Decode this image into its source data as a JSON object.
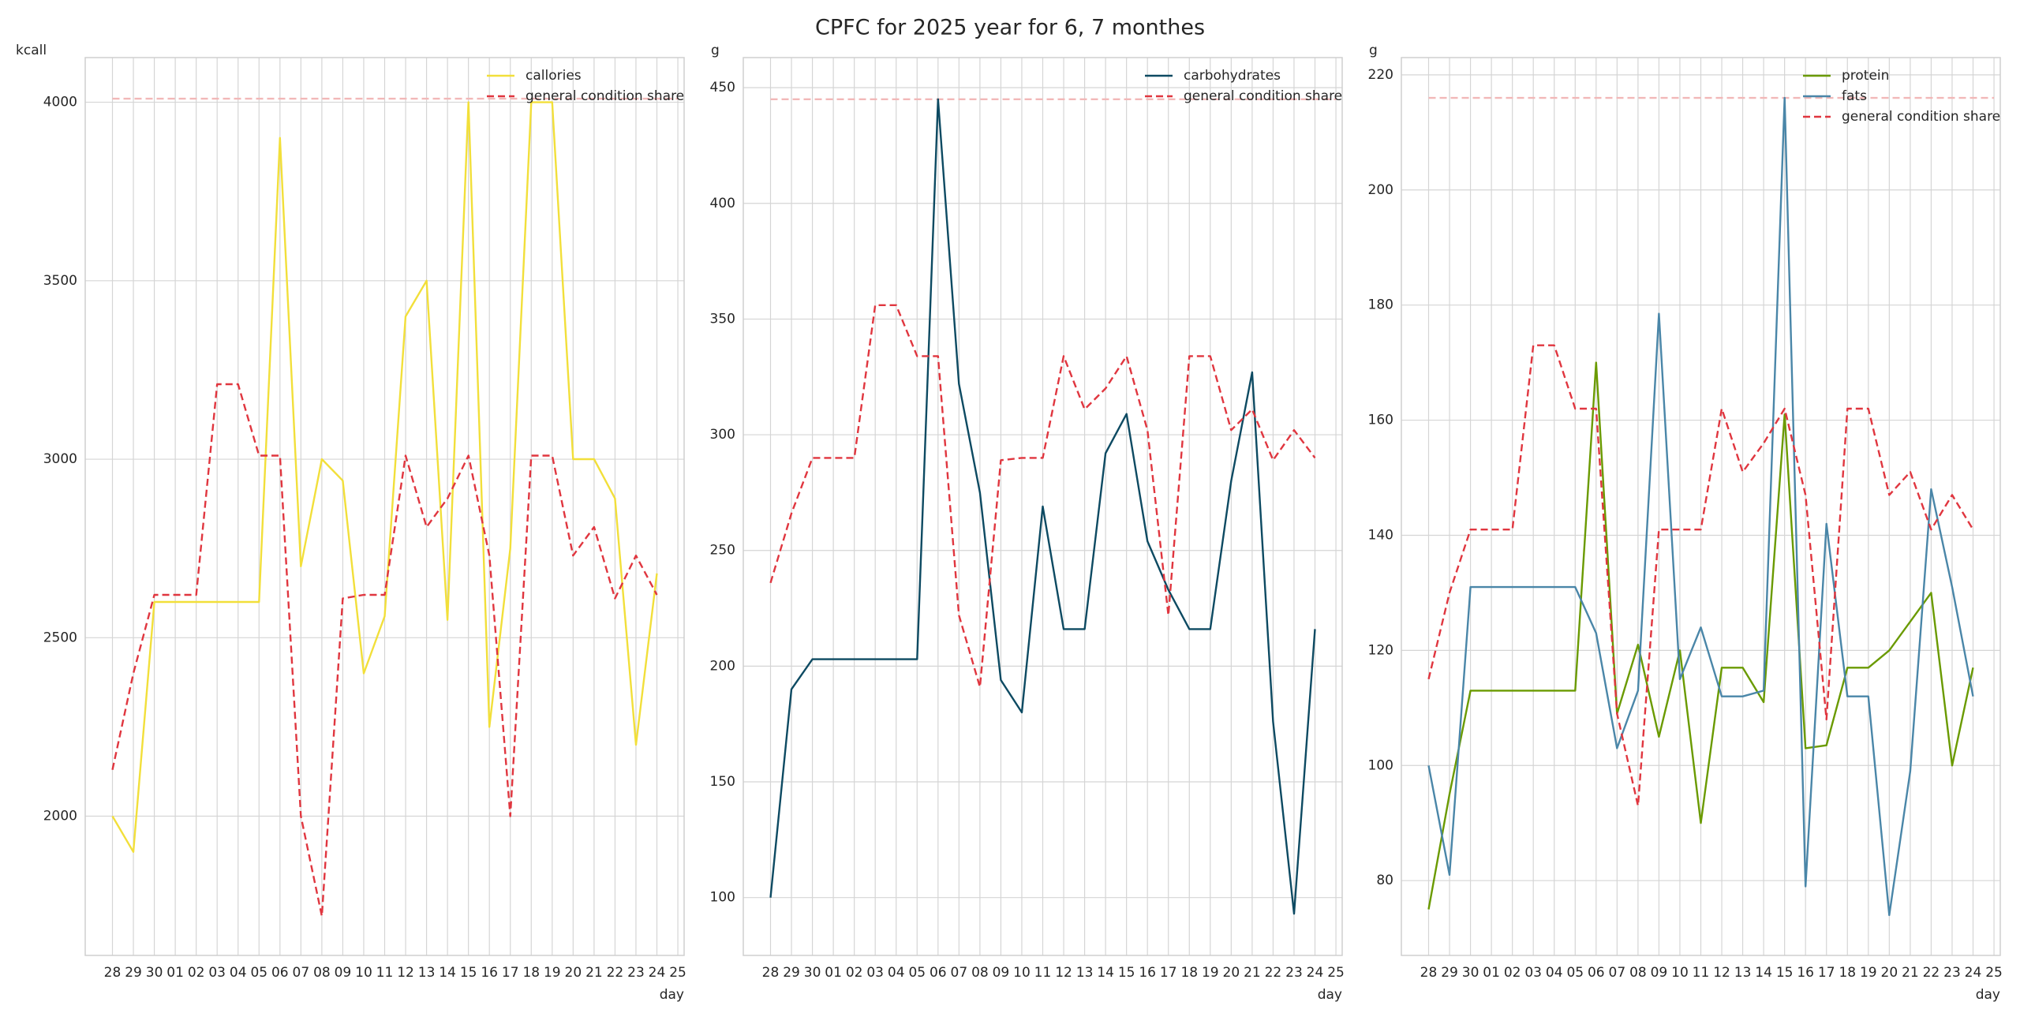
{
  "title": "CPFC for 2025 year for 6, 7 monthes",
  "chart_data": [
    {
      "type": "line",
      "ylabel": "kcall",
      "xlabel": "day",
      "categories": [
        "28",
        "29",
        "30",
        "01",
        "02",
        "03",
        "04",
        "05",
        "06",
        "07",
        "08",
        "09",
        "10",
        "11",
        "12",
        "13",
        "14",
        "15",
        "16",
        "17",
        "18",
        "19",
        "20",
        "21",
        "22",
        "23",
        "24",
        "25"
      ],
      "series": [
        {
          "name": "callories",
          "color": "#f2df3a",
          "linestyle": "solid",
          "values": [
            2000,
            1900,
            2600,
            2600,
            2600,
            2600,
            2600,
            2600,
            3900,
            2700,
            3000,
            2940,
            2400,
            2560,
            3400,
            3500,
            2550,
            4000,
            2250,
            2750,
            4000,
            4000,
            3000,
            3000,
            2890,
            2200,
            2680,
            null
          ]
        },
        {
          "name": "general condition share",
          "color": "#e0363f",
          "linestyle": "dashed",
          "values": [
            2130,
            2400,
            2620,
            2620,
            2620,
            3210,
            3210,
            3010,
            3010,
            2000,
            1720,
            2610,
            2620,
            2620,
            3010,
            2810,
            2890,
            3010,
            2730,
            2000,
            3010,
            3010,
            2730,
            2810,
            2610,
            2730,
            2620,
            null
          ]
        }
      ],
      "reference_line": {
        "value": 4010,
        "color": "#f2b8b8"
      },
      "xlim": [
        -1.3,
        27.3
      ],
      "ylim": [
        1610,
        4125
      ],
      "yticks": [
        2000,
        2500,
        3000,
        3500,
        4000
      ],
      "grid": true,
      "legend": "upper right"
    },
    {
      "type": "line",
      "ylabel": "g",
      "xlabel": "day",
      "categories": [
        "28",
        "29",
        "30",
        "01",
        "02",
        "03",
        "04",
        "05",
        "06",
        "07",
        "08",
        "09",
        "10",
        "11",
        "12",
        "13",
        "14",
        "15",
        "16",
        "17",
        "18",
        "19",
        "20",
        "21",
        "22",
        "23",
        "24",
        "25"
      ],
      "series": [
        {
          "name": "carbohydrates",
          "color": "#0d4a62",
          "linestyle": "solid",
          "values": [
            100,
            190,
            203,
            203,
            203,
            203,
            203,
            203,
            445,
            322,
            275,
            194,
            180,
            269,
            216,
            216,
            292,
            309,
            254,
            233,
            216,
            216,
            280,
            327,
            176,
            93,
            216,
            null
          ]
        },
        {
          "name": "general condition share",
          "color": "#e0363f",
          "linestyle": "dashed",
          "values": [
            236,
            266,
            290,
            290,
            290,
            356,
            356,
            334,
            334,
            222,
            191,
            289,
            290,
            290,
            334,
            311,
            320,
            334,
            302,
            222,
            334,
            334,
            302,
            311,
            289,
            302,
            290,
            null
          ]
        }
      ],
      "reference_line": {
        "value": 445,
        "color": "#f2b8b8"
      },
      "xlim": [
        -1.3,
        27.3
      ],
      "ylim": [
        75,
        463
      ],
      "yticks": [
        100,
        150,
        200,
        250,
        300,
        350,
        400,
        450
      ],
      "grid": true,
      "legend": "upper right"
    },
    {
      "type": "line",
      "ylabel": "g",
      "xlabel": "day",
      "categories": [
        "28",
        "29",
        "30",
        "01",
        "02",
        "03",
        "04",
        "05",
        "06",
        "07",
        "08",
        "09",
        "10",
        "11",
        "12",
        "13",
        "14",
        "15",
        "16",
        "17",
        "18",
        "19",
        "20",
        "21",
        "22",
        "23",
        "24",
        "25"
      ],
      "series": [
        {
          "name": "protein",
          "color": "#6a9a00",
          "linestyle": "solid",
          "values": [
            75,
            95,
            113,
            113,
            113,
            113,
            113,
            113,
            170,
            109,
            121,
            105,
            120,
            90,
            117,
            117,
            111,
            161,
            103,
            103.5,
            117,
            117,
            120,
            125,
            130,
            100,
            117,
            null
          ]
        },
        {
          "name": "fats",
          "color": "#4a86a8",
          "linestyle": "solid",
          "values": [
            100,
            81,
            131,
            131,
            131,
            131,
            131,
            131,
            123,
            103,
            113,
            178.5,
            115,
            124,
            112,
            112,
            113,
            216,
            79,
            142,
            112,
            112,
            74,
            99,
            148,
            131,
            112,
            null
          ]
        },
        {
          "name": "general condition share",
          "color": "#e0363f",
          "linestyle": "dashed",
          "values": [
            115,
            130,
            141,
            141,
            141,
            173,
            173,
            162,
            162,
            109,
            93,
            141,
            141,
            141,
            162,
            151,
            156,
            162,
            147,
            108,
            162,
            162,
            147,
            151,
            141,
            147,
            141,
            null
          ]
        }
      ],
      "reference_line": {
        "value": 216,
        "color": "#f2b8b8"
      },
      "xlim": [
        -1.3,
        27.3
      ],
      "ylim": [
        67,
        223
      ],
      "yticks": [
        80,
        100,
        120,
        140,
        160,
        180,
        200,
        220
      ],
      "grid": true,
      "legend": "upper right"
    }
  ]
}
